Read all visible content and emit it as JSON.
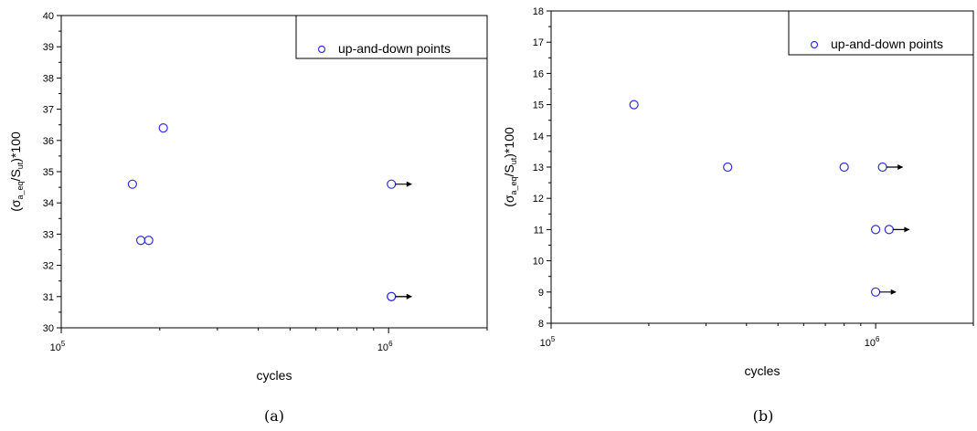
{
  "chart_data": [
    {
      "type": "scatter",
      "caption": "(a)",
      "xlabel": "cycles",
      "ylabel": "(σa_eq/Sut)*100",
      "xscale": "log",
      "xlim": [
        100000,
        2000000
      ],
      "ylim": [
        30,
        40
      ],
      "y_ticks": [
        30,
        31,
        32,
        33,
        34,
        35,
        36,
        37,
        38,
        39,
        40
      ],
      "x_tick_labels": [
        {
          "base": "10",
          "exp": "5",
          "value": 100000
        },
        {
          "base": "10",
          "exp": "6",
          "value": 1000000
        }
      ],
      "legend": {
        "label": "up-and-down points",
        "position": "top-right"
      },
      "series": [
        {
          "name": "up-and-down points",
          "color": "#2f2fe0",
          "points": [
            {
              "x": 165000,
              "y": 34.6
            },
            {
              "x": 175000,
              "y": 32.8
            },
            {
              "x": 185000,
              "y": 32.8
            },
            {
              "x": 205000,
              "y": 36.4
            },
            {
              "x": 1020000,
              "y": 34.6,
              "runout": true
            },
            {
              "x": 1020000,
              "y": 31.0,
              "runout": true
            },
            {
              "x": 1020000,
              "y": 31.0,
              "runout": true
            }
          ]
        }
      ]
    },
    {
      "type": "scatter",
      "caption": "(b)",
      "xlabel": "cycles",
      "ylabel": "(σa_eq/Sut)*100",
      "xscale": "log",
      "xlim": [
        100000,
        2000000
      ],
      "ylim": [
        8,
        18
      ],
      "y_ticks": [
        8,
        9,
        10,
        11,
        12,
        13,
        14,
        15,
        16,
        17,
        18
      ],
      "x_tick_labels": [
        {
          "base": "10",
          "exp": "5",
          "value": 100000
        },
        {
          "base": "10",
          "exp": "6",
          "value": 1000000
        }
      ],
      "legend": {
        "label": "up-and-down points",
        "position": "top-right"
      },
      "series": [
        {
          "name": "up-and-down points",
          "color": "#2f2fe0",
          "points": [
            {
              "x": 180000,
              "y": 15
            },
            {
              "x": 350000,
              "y": 13
            },
            {
              "x": 800000,
              "y": 13
            },
            {
              "x": 1050000,
              "y": 13,
              "runout": true
            },
            {
              "x": 1000000,
              "y": 11
            },
            {
              "x": 1100000,
              "y": 11,
              "runout": true
            },
            {
              "x": 1000000,
              "y": 9,
              "runout": true
            }
          ]
        }
      ]
    }
  ]
}
